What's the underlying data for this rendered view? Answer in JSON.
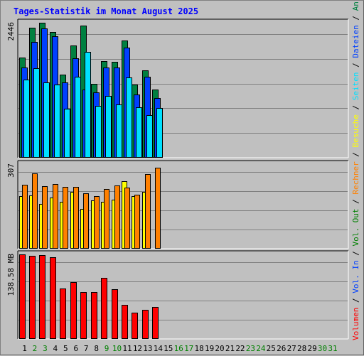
{
  "page": {
    "title": "Tages-Statistik im Monat August 2025"
  },
  "colors": {
    "hits": "#008040",
    "files": "#0040ff",
    "pages": "#00e0ff",
    "visits": "#ffff00",
    "sites": "#ff8000",
    "kbytes": "#ff0000",
    "weekend_day": "#008000",
    "weekday": "#000000",
    "panel_bg": "#c0c0c0",
    "separator": "#000000"
  },
  "chart_data": {
    "type": "bar",
    "title": "Tages-Statistik im Monat August 2025",
    "x": [
      "1",
      "2",
      "3",
      "4",
      "5",
      "6",
      "7",
      "8",
      "9",
      "10",
      "11",
      "12",
      "13",
      "14",
      "15",
      "16",
      "17",
      "18",
      "19",
      "20",
      "21",
      "22",
      "23",
      "24",
      "25",
      "26",
      "27",
      "28",
      "29",
      "30",
      "31"
    ],
    "weekend_days": [
      2,
      3,
      9,
      10,
      16,
      17,
      23,
      24,
      30,
      31
    ],
    "panels": [
      {
        "id": "requests",
        "max_label": "2446",
        "ylim": [
          0,
          2446
        ],
        "series": [
          {
            "name": "Anfragen",
            "key": "hits",
            "values": [
              1810,
              2360,
              2446,
              2280,
              1510,
              2030,
              2390,
              1340,
              1750,
              1740,
              2120,
              1330,
              1580,
              1240,
              null,
              null,
              null,
              null,
              null,
              null,
              null,
              null,
              null,
              null,
              null,
              null,
              null,
              null,
              null,
              null,
              null
            ]
          },
          {
            "name": "Dateien",
            "key": "files",
            "values": [
              1630,
              2100,
              2340,
              2200,
              1370,
              1800,
              1230,
              1190,
              1640,
              1640,
              2000,
              1150,
              1470,
              1080,
              null,
              null,
              null,
              null,
              null,
              null,
              null,
              null,
              null,
              null,
              null,
              null,
              null,
              null,
              null,
              null,
              null
            ]
          },
          {
            "name": "Seiten",
            "key": "pages",
            "values": [
              1410,
              1620,
              1370,
              1320,
              890,
              1470,
              1920,
              940,
              1120,
              960,
              1450,
              910,
              770,
              900,
              null,
              null,
              null,
              null,
              null,
              null,
              null,
              null,
              null,
              null,
              null,
              null,
              null,
              null,
              null,
              null,
              null
            ]
          }
        ]
      },
      {
        "id": "visits",
        "max_label": "307",
        "ylim": [
          0,
          307
        ],
        "series": [
          {
            "name": "Besuche",
            "key": "visits",
            "values": [
              190,
              193,
              163,
              185,
              170,
              206,
              145,
              175,
              170,
              178,
              245,
              190,
              207,
              null,
              null,
              null,
              null,
              null,
              null,
              null,
              null,
              null,
              null,
              null,
              null,
              null,
              null,
              null,
              null,
              null,
              null
            ]
          },
          {
            "name": "Rechner",
            "key": "sites",
            "values": [
              232,
              273,
              228,
              235,
              225,
              225,
              200,
              192,
              217,
              230,
              223,
              195,
              270,
              295,
              null,
              null,
              null,
              null,
              null,
              null,
              null,
              null,
              null,
              null,
              null,
              null,
              null,
              null,
              null,
              null,
              null
            ]
          }
        ]
      },
      {
        "id": "volume",
        "max_label": "138.58 MB",
        "ylim": [
          0,
          138.58
        ],
        "series": [
          {
            "name": "Volumen",
            "key": "kbytes",
            "values": [
              138.58,
              136,
              137,
              134,
              83,
              93,
              77,
              77,
              100,
              82,
              56,
              43,
              48,
              52,
              null,
              null,
              null,
              null,
              null,
              null,
              null,
              null,
              null,
              null,
              null,
              null,
              null,
              null,
              null,
              null,
              null
            ]
          }
        ]
      }
    ],
    "side_legend": [
      {
        "text": "Volumen",
        "key": "kbytes"
      },
      {
        "text": " / ",
        "key": "separator"
      },
      {
        "text": "Vol. In",
        "key": "files"
      },
      {
        "text": " / ",
        "key": "separator"
      },
      {
        "text": "Vol. Out",
        "key": "weekend_day"
      },
      {
        "text": " / ",
        "key": "separator"
      },
      {
        "text": "Rechner",
        "key": "sites"
      },
      {
        "text": " / ",
        "key": "separator"
      },
      {
        "text": "Besuche",
        "key": "visits"
      },
      {
        "text": " / ",
        "key": "separator"
      },
      {
        "text": "Seiten",
        "key": "pages"
      },
      {
        "text": " / ",
        "key": "separator"
      },
      {
        "text": "Dateien",
        "key": "files"
      },
      {
        "text": " / ",
        "key": "separator"
      },
      {
        "text": "Anfragen",
        "key": "hits"
      }
    ]
  }
}
